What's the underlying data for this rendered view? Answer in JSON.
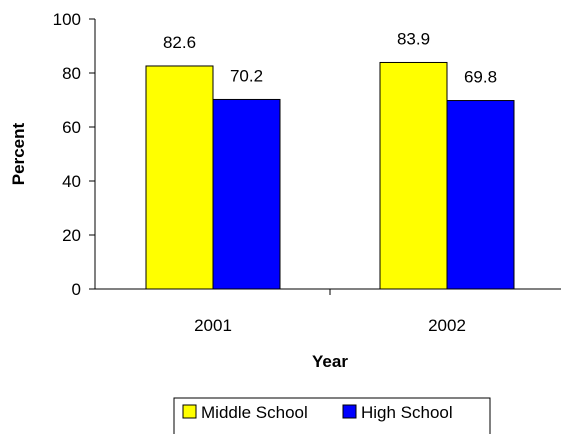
{
  "chart_data": {
    "type": "bar",
    "categories": [
      "2001",
      "2002"
    ],
    "series": [
      {
        "name": "Middle School",
        "values": [
          82.6,
          83.9
        ],
        "color": "#ffff00"
      },
      {
        "name": "High School",
        "values": [
          70.2,
          69.8
        ],
        "color": "#0000ff"
      }
    ],
    "data_labels": [
      [
        "82.6",
        "83.9"
      ],
      [
        "70.2",
        "69.8"
      ]
    ],
    "title": "",
    "xlabel": "Year",
    "ylabel": "Percent",
    "ylim": [
      0,
      100
    ],
    "yticks": [
      "0",
      "20",
      "40",
      "60",
      "80",
      "100"
    ],
    "grid": false,
    "legend_position": "bottom"
  }
}
